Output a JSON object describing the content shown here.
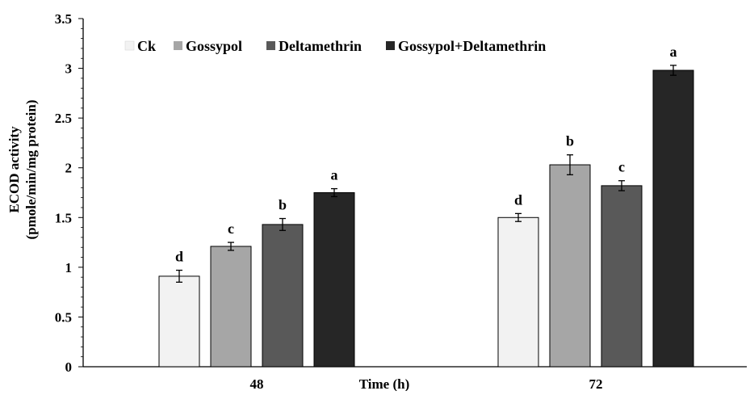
{
  "chart_data": {
    "type": "bar",
    "title": "",
    "ylabel_line1": "ECOD activity",
    "ylabel_line2": "(pmole/min/mg protein)",
    "xlabel": "Time (h)",
    "categories": [
      "48",
      "72"
    ],
    "ylim": [
      0,
      3.5
    ],
    "yticks": [
      0,
      0.5,
      1,
      1.5,
      2,
      2.5,
      3,
      3.5
    ],
    "ytick_labels": [
      "0",
      "0.5",
      "1",
      "1.5",
      "2",
      "2.5",
      "3",
      "3.5"
    ],
    "grid": false,
    "legend_position": "top-left",
    "series": [
      {
        "name": "Ck",
        "color": "#f2f2f2",
        "values": [
          0.91,
          1.5
        ],
        "errors": [
          0.06,
          0.04
        ],
        "letters": [
          "d",
          "d"
        ]
      },
      {
        "name": "Gossypol",
        "color": "#a6a6a6",
        "values": [
          1.21,
          2.03
        ],
        "errors": [
          0.04,
          0.1
        ],
        "letters": [
          "c",
          "b"
        ]
      },
      {
        "name": "Deltamethrin",
        "color": "#595959",
        "values": [
          1.43,
          1.82
        ],
        "errors": [
          0.06,
          0.05
        ],
        "letters": [
          "b",
          "c"
        ]
      },
      {
        "name": "Gossypol+Deltamethrin",
        "color": "#262626",
        "values": [
          1.75,
          2.98
        ],
        "errors": [
          0.04,
          0.05
        ],
        "letters": [
          "a",
          "a"
        ]
      }
    ]
  }
}
